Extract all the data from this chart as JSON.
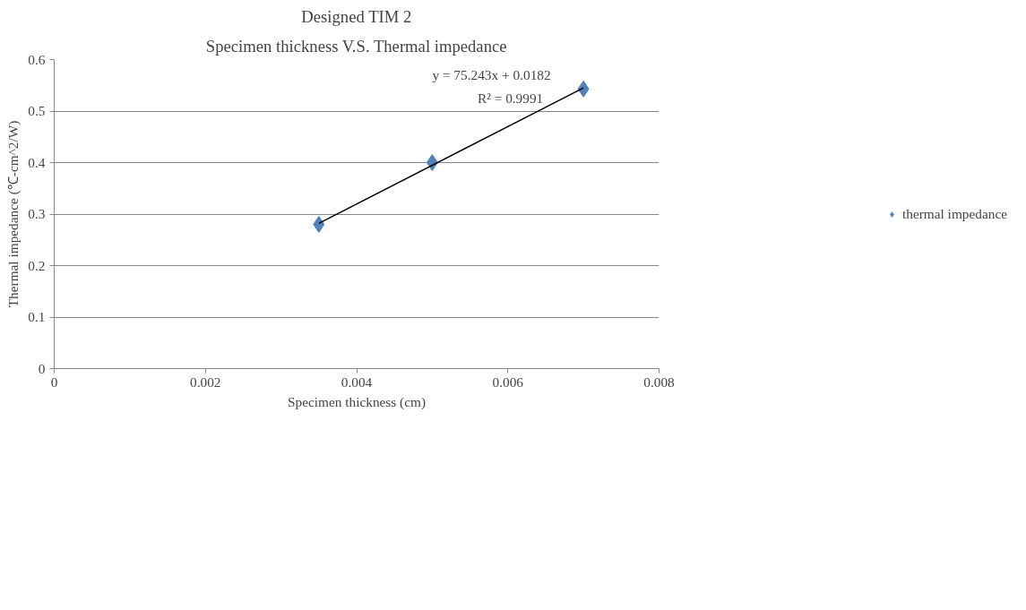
{
  "chart_data": {
    "type": "scatter",
    "title": "Designed TIM 2",
    "subtitle": "Specimen thickness V.S. Thermal impedance",
    "xlabel": "Specimen thickness (cm)",
    "ylabel": "Thermal impedance (℃-cm^2/W)",
    "annotations": [
      "y = 75.243x + 0.0182",
      "R² = 0.9991"
    ],
    "series": [
      {
        "name": "thermal impedance",
        "color": "#4f81bd",
        "x": [
          0.0035,
          0.005,
          0.007
        ],
        "values": [
          0.28,
          0.4,
          0.543
        ],
        "marker": "diamond"
      },
      {
        "type": "line",
        "color": "#000000",
        "x": [
          0.0035,
          0.007
        ],
        "values": [
          0.282,
          0.545
        ],
        "marker": "none"
      }
    ],
    "xlim": [
      0,
      0.008
    ],
    "xticks": [
      0,
      0.002,
      0.004,
      0.006,
      0.008
    ],
    "ylim": [
      0,
      0.6
    ],
    "yticks": [
      0,
      0.1,
      0.2,
      0.3,
      0.4,
      0.5,
      0.6
    ],
    "grid": "y",
    "legend": "right"
  }
}
